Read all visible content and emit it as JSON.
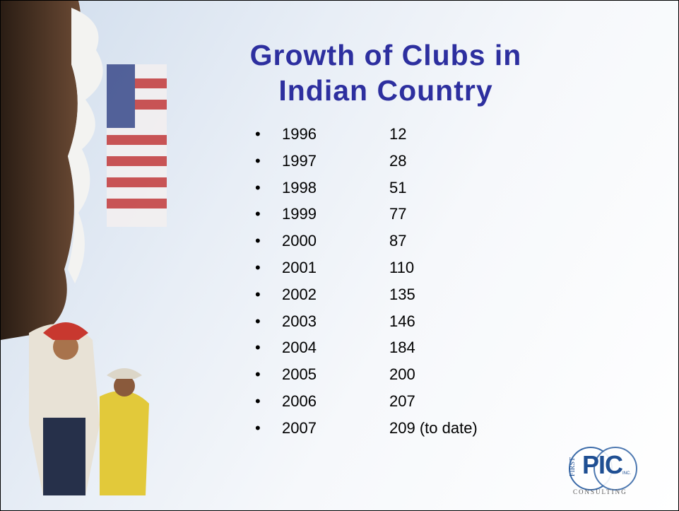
{
  "header": {
    "title_lines": [
      "Growth of Clubs in",
      "Indian Country"
    ]
  },
  "list": {
    "items": [
      {
        "year": "1996",
        "clubs": "12"
      },
      {
        "year": "1997",
        "clubs": "28"
      },
      {
        "year": "1998",
        "clubs": "51"
      },
      {
        "year": "1999",
        "clubs": "77"
      },
      {
        "year": "2000",
        "clubs": "87"
      },
      {
        "year": "2001",
        "clubs": "110"
      },
      {
        "year": "2002",
        "clubs": "135"
      },
      {
        "year": "2003",
        "clubs": "146"
      },
      {
        "year": "2004",
        "clubs": "184"
      },
      {
        "year": "2005",
        "clubs": "200"
      },
      {
        "year": "2006",
        "clubs": "207"
      },
      {
        "year": "2007",
        "clubs": "209 (to date)"
      }
    ]
  },
  "logo": {
    "first": "FIRST",
    "name": "PIC",
    "inc": "INC.",
    "tagline": "CONSULTING"
  }
}
